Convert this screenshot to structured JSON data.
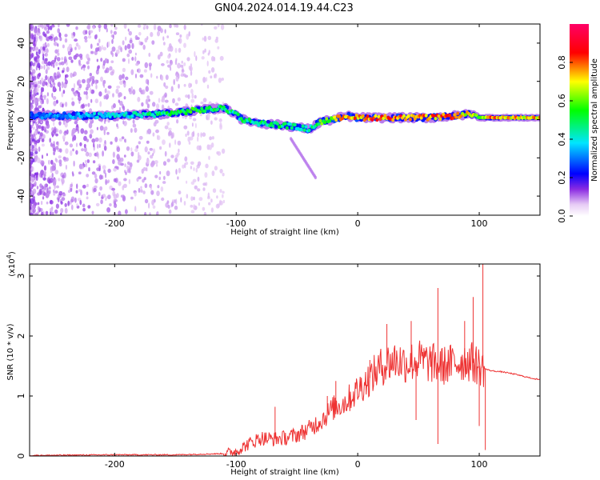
{
  "title": "GN04.2024.014.19.44.C23",
  "chart_data": [
    {
      "type": "heatmap",
      "name": "spectrogram",
      "xlabel": "Height of straight line (km)",
      "ylabel": "Frequency (Hz)",
      "xlim": [
        -270,
        150
      ],
      "ylim": [
        -50,
        50
      ],
      "xticks": [
        -200,
        -100,
        0,
        100
      ],
      "yticks": [
        -40,
        -20,
        0,
        20,
        40
      ],
      "colorbar": {
        "label": "Normalized spectral amplitude",
        "range": [
          0,
          1
        ],
        "ticks": [
          0.0,
          0.2,
          0.4,
          0.6,
          0.8
        ],
        "colors": [
          "#ffffff",
          "#e7cbf5",
          "#8a2be2",
          "#0000ff",
          "#00e5ff",
          "#00ff00",
          "#ffff00",
          "#ff0000",
          "#ff0066"
        ]
      },
      "ridge": {
        "x": [
          -270,
          -240,
          -200,
          -160,
          -130,
          -110,
          -100,
          -95,
          -80,
          -60,
          -40,
          -30,
          -20,
          -10,
          0,
          20,
          40,
          60,
          80,
          95,
          100,
          110,
          130,
          150
        ],
        "freq": [
          2,
          2,
          2,
          3,
          5,
          6,
          3,
          0,
          -2,
          -3,
          -5,
          -1,
          0,
          2,
          1,
          1,
          1,
          1,
          2,
          3,
          1,
          1,
          1,
          1
        ],
        "amplitude": [
          0.3,
          0.35,
          0.4,
          0.5,
          0.55,
          0.5,
          0.45,
          0.5,
          0.5,
          0.5,
          0.45,
          0.6,
          0.7,
          0.75,
          0.8,
          0.85,
          0.85,
          0.8,
          0.8,
          0.7,
          0.6,
          0.85,
          0.75,
          0.75
        ]
      }
    },
    {
      "type": "line",
      "name": "snr",
      "xlabel": "Height of straight line (km)",
      "ylabel": "SNR (10 * v/v)",
      "y_scale_note": "(x10",
      "y_scale_exp": "4",
      "y_scale_close": ")",
      "xlim": [
        -270,
        150
      ],
      "ylim": [
        0,
        3.2
      ],
      "xticks": [
        -200,
        -100,
        0,
        100
      ],
      "yticks": [
        0,
        1,
        2,
        3
      ],
      "color": "#ee3333",
      "series": [
        {
          "x": [
            -270,
            -200,
            -150,
            -110,
            -100,
            -90,
            -80,
            -70,
            -60,
            -50,
            -40,
            -30,
            -20,
            -10,
            0,
            10,
            20,
            30,
            40,
            50,
            60,
            70,
            80,
            90,
            100,
            105,
            110,
            120,
            130,
            140,
            150
          ],
          "y": [
            0.01,
            0.02,
            0.02,
            0.04,
            0.08,
            0.2,
            0.3,
            0.28,
            0.3,
            0.35,
            0.45,
            0.6,
            0.8,
            0.9,
            1.1,
            1.3,
            1.5,
            1.6,
            1.55,
            1.6,
            1.55,
            1.5,
            1.55,
            1.6,
            1.5,
            1.45,
            1.42,
            1.4,
            1.36,
            1.31,
            1.27
          ]
        }
      ],
      "spikes": [
        {
          "x": -68,
          "y": 0.82
        },
        {
          "x": -25,
          "y": 1.0
        },
        {
          "x": -18,
          "y": 1.25
        },
        {
          "x": 10,
          "y": 1.6
        },
        {
          "x": 24,
          "y": 2.2
        },
        {
          "x": 44,
          "y": 2.25
        },
        {
          "x": 48,
          "y": 0.6
        },
        {
          "x": 66,
          "y": 2.8
        },
        {
          "x": 66,
          "y": 0.2
        },
        {
          "x": 88,
          "y": 2.25
        },
        {
          "x": 95,
          "y": 2.65
        },
        {
          "x": 103,
          "y": 3.2
        },
        {
          "x": 105,
          "y": 0.1
        },
        {
          "x": 100,
          "y": 0.5
        }
      ]
    }
  ]
}
